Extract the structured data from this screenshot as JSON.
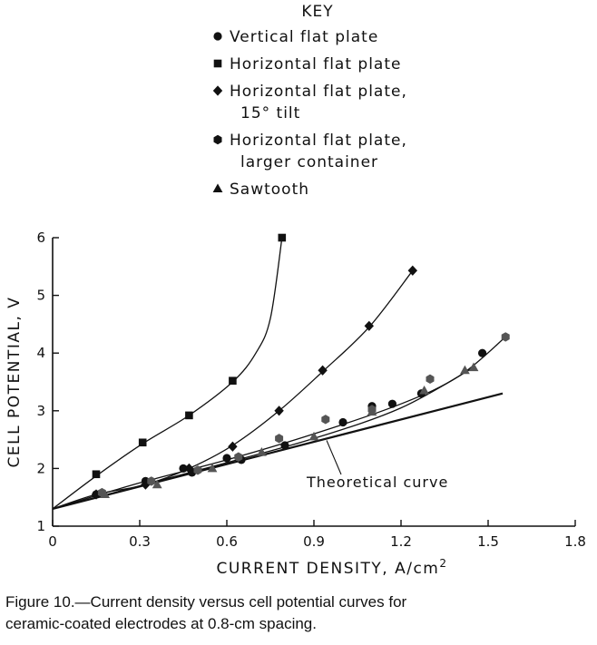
{
  "chart_data": {
    "type": "scatter",
    "title": "",
    "xlabel": "CURRENT DENSITY, A/cm",
    "xlabel_sup": "2",
    "ylabel": "CELL POTENTIAL, V",
    "xlim": [
      0,
      1.8
    ],
    "ylim": [
      1,
      6
    ],
    "xticks": [
      "0",
      "0.3",
      "0.6",
      "0.9",
      "1.2",
      "1.5",
      "1.8"
    ],
    "yticks": [
      "1",
      "2",
      "3",
      "4",
      "5",
      "6"
    ],
    "grid": false,
    "legend": {
      "title": "KEY",
      "placement": "top-center",
      "entries": [
        {
          "marker": "circle",
          "lines": [
            "Vertical flat plate"
          ]
        },
        {
          "marker": "square",
          "lines": [
            "Horizontal flat plate"
          ]
        },
        {
          "marker": "diamond",
          "lines": [
            "Horizontal flat plate,",
            "15° tilt"
          ]
        },
        {
          "marker": "hexagon",
          "lines": [
            "Horizontal flat plate,",
            "larger container"
          ]
        },
        {
          "marker": "triangle",
          "lines": [
            "Sawtooth"
          ]
        }
      ]
    },
    "series": [
      {
        "marker": "circle",
        "points": [
          [
            0.15,
            1.55
          ],
          [
            0.32,
            1.78
          ],
          [
            0.45,
            2.0
          ],
          [
            0.48,
            1.93
          ],
          [
            0.6,
            2.18
          ],
          [
            0.65,
            2.15
          ],
          [
            0.8,
            2.4
          ],
          [
            1.0,
            2.8
          ],
          [
            1.1,
            3.08
          ],
          [
            1.17,
            3.12
          ],
          [
            1.27,
            3.3
          ],
          [
            1.48,
            4.0
          ]
        ]
      },
      {
        "marker": "square",
        "points": [
          [
            0.15,
            1.9
          ],
          [
            0.31,
            2.45
          ],
          [
            0.47,
            2.92
          ],
          [
            0.62,
            3.52
          ],
          [
            0.79,
            6.0
          ]
        ]
      },
      {
        "marker": "diamond",
        "points": [
          [
            0.15,
            1.55
          ],
          [
            0.32,
            1.72
          ],
          [
            0.47,
            2.0
          ],
          [
            0.62,
            2.38
          ],
          [
            0.78,
            3.0
          ],
          [
            0.93,
            3.7
          ],
          [
            1.09,
            4.47
          ],
          [
            1.24,
            5.43
          ]
        ]
      },
      {
        "marker": "hexagon",
        "points": [
          [
            0.17,
            1.58
          ],
          [
            0.34,
            1.78
          ],
          [
            0.5,
            1.97
          ],
          [
            0.64,
            2.2
          ],
          [
            0.78,
            2.52
          ],
          [
            0.94,
            2.85
          ],
          [
            1.1,
            3.02
          ],
          [
            1.3,
            3.55
          ],
          [
            1.56,
            4.28
          ]
        ]
      },
      {
        "marker": "triangle",
        "points": [
          [
            0.18,
            1.55
          ],
          [
            0.36,
            1.72
          ],
          [
            0.55,
            2.0
          ],
          [
            0.72,
            2.28
          ],
          [
            0.9,
            2.55
          ],
          [
            1.1,
            2.98
          ],
          [
            1.28,
            3.35
          ],
          [
            1.42,
            3.7
          ],
          [
            1.45,
            3.75
          ]
        ]
      }
    ],
    "curves": [
      {
        "name": "Horizontal flat plate fit",
        "points": [
          [
            0,
            1.3
          ],
          [
            0.15,
            1.87
          ],
          [
            0.31,
            2.43
          ],
          [
            0.47,
            2.92
          ],
          [
            0.62,
            3.5
          ],
          [
            0.7,
            4.0
          ],
          [
            0.75,
            4.6
          ],
          [
            0.79,
            6.0
          ]
        ]
      },
      {
        "name": "15° tilt fit",
        "points": [
          [
            0,
            1.3
          ],
          [
            0.15,
            1.55
          ],
          [
            0.32,
            1.72
          ],
          [
            0.47,
            2.0
          ],
          [
            0.62,
            2.4
          ],
          [
            0.78,
            3.0
          ],
          [
            0.93,
            3.68
          ],
          [
            1.09,
            4.45
          ],
          [
            1.24,
            5.43
          ]
        ]
      },
      {
        "name": "upper data fit",
        "points": [
          [
            0,
            1.3
          ],
          [
            0.3,
            1.75
          ],
          [
            0.6,
            2.15
          ],
          [
            0.9,
            2.6
          ],
          [
            1.2,
            3.12
          ],
          [
            1.4,
            3.6
          ],
          [
            1.56,
            4.28
          ]
        ]
      },
      {
        "name": "lower data fit",
        "points": [
          [
            0,
            1.3
          ],
          [
            0.3,
            1.7
          ],
          [
            0.6,
            2.1
          ],
          [
            0.9,
            2.52
          ],
          [
            1.2,
            3.05
          ],
          [
            1.45,
            3.75
          ]
        ]
      },
      {
        "name": "Theoretical curve",
        "points": [
          [
            0,
            1.3
          ],
          [
            1.55,
            3.3
          ]
        ]
      }
    ],
    "annotations": [
      {
        "text": "Theoretical curve",
        "target": [
          0.95,
          2.55
        ]
      }
    ]
  },
  "caption": {
    "line1": "Figure 10.—Current density versus cell potential curves for",
    "line2": "ceramic-coated electrodes at 0.8-cm spacing."
  }
}
